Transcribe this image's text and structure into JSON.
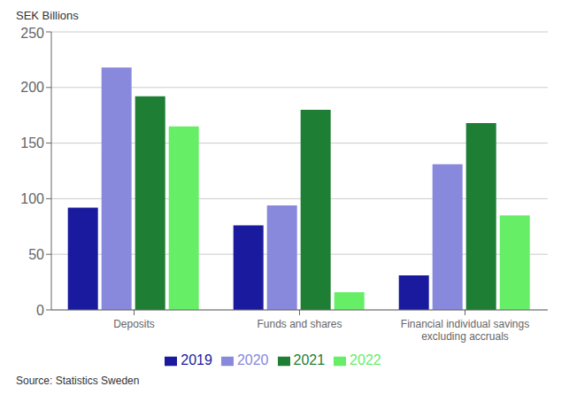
{
  "chart_data": {
    "type": "bar",
    "ylabel": "SEK Billions",
    "categories": [
      "Deposits",
      "Funds and shares",
      "Financial individual savings\nexcluding accruals"
    ],
    "series": [
      {
        "name": "2019",
        "color": "#1a1a9e",
        "values": [
          92,
          76,
          31
        ]
      },
      {
        "name": "2020",
        "color": "#8888dd",
        "values": [
          218,
          94,
          131
        ]
      },
      {
        "name": "2021",
        "color": "#1e7e34",
        "values": [
          192,
          180,
          168
        ]
      },
      {
        "name": "2022",
        "color": "#66ee66",
        "values": [
          165,
          16,
          85
        ]
      }
    ],
    "ylim": [
      0,
      250
    ],
    "yticks": [
      0,
      50,
      100,
      150,
      200,
      250
    ],
    "grid": true,
    "legend": "bottom",
    "annotations": [
      "Source: Statistics Sweden"
    ]
  }
}
